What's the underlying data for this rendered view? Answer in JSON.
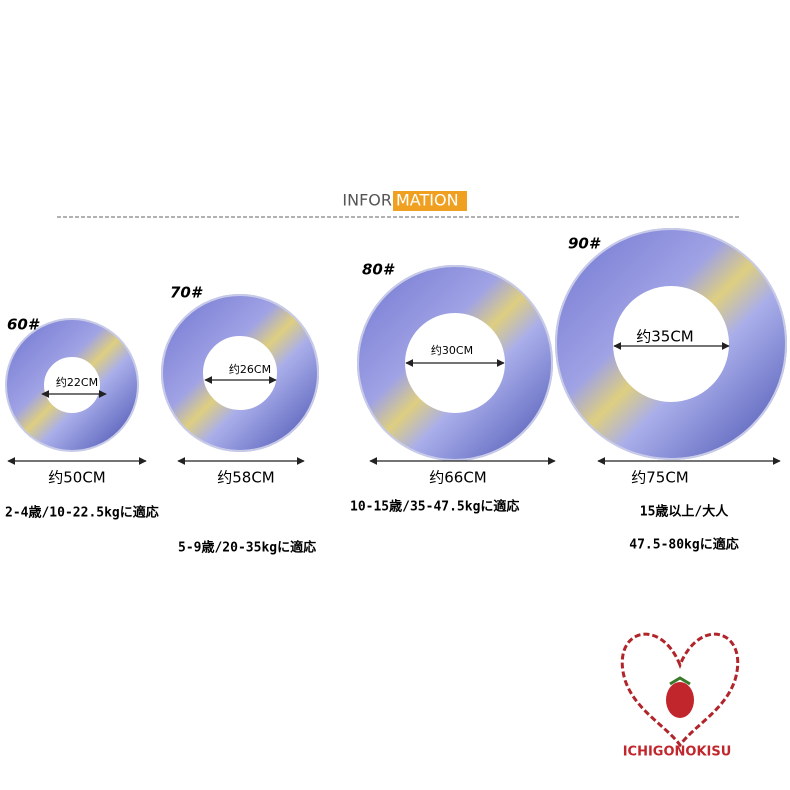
{
  "header": {
    "title_left": "INFOR",
    "title_right": "MATION"
  },
  "sizes": [
    {
      "label": "60#",
      "inner": "约22CM",
      "outer": "约50CM",
      "fit": [
        "2-4歳/10-22.5kgに適応"
      ]
    },
    {
      "label": "70#",
      "inner": "约26CM",
      "outer": "约58CM",
      "fit": [
        "5-9歳/20-35kgに適応"
      ]
    },
    {
      "label": "80#",
      "inner": "约30CM",
      "outer": "约66CM",
      "fit": [
        "10-15歳/35-47.5kgに適応"
      ]
    },
    {
      "label": "90#",
      "inner": "约35CM",
      "outer": "约75CM",
      "fit": [
        "15歳以上/大人",
        "47.5-80kgに適応"
      ]
    }
  ],
  "logo": "ICHIGONOKISU"
}
